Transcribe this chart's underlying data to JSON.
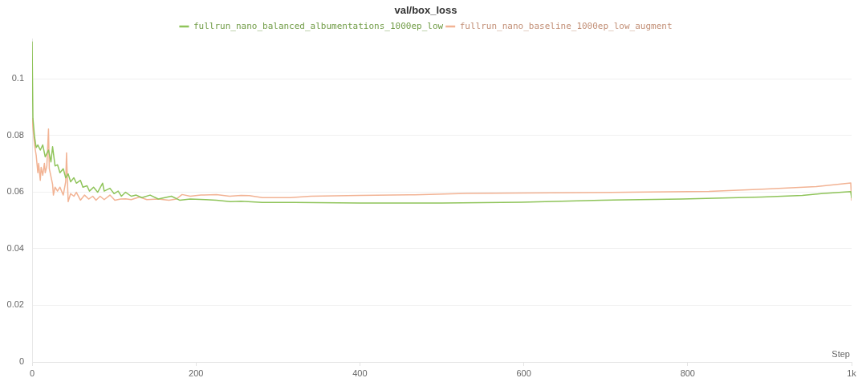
{
  "chart_data": {
    "type": "line",
    "title": "val/box_loss",
    "xlabel": "Step",
    "xlim": [
      0,
      1000
    ],
    "xticks": [
      0,
      200,
      400,
      600,
      800,
      {
        "value": 1000,
        "label": "1k"
      }
    ],
    "ylim": [
      0,
      0.114
    ],
    "yticks": [
      0,
      0.02,
      0.04,
      0.06,
      0.08,
      0.1
    ],
    "grid": "y",
    "legend": "top",
    "marker": "none",
    "line_style": "solid",
    "series": [
      {
        "name": "fullrun_nano_balanced_albumentations_1000ep_low",
        "color": "#8fc45a",
        "x": [
          0,
          1,
          3,
          5,
          7,
          10,
          13,
          16,
          20,
          23,
          25,
          28,
          31,
          34,
          38,
          41,
          44,
          47,
          51,
          54,
          59,
          62,
          67,
          70,
          75,
          80,
          86,
          88,
          95,
          100,
          105,
          109,
          114,
          121,
          127,
          134,
          144,
          154,
          170,
          180,
          193,
          212,
          225,
          242,
          255,
          281,
          320,
          400,
          500,
          597,
          695,
          793,
          891,
          940,
          963,
          999,
          1000
        ],
        "values": [
          0.113,
          0.086,
          0.0794,
          0.0757,
          0.0766,
          0.0748,
          0.0766,
          0.0724,
          0.0748,
          0.0706,
          0.076,
          0.0692,
          0.0696,
          0.0668,
          0.0682,
          0.065,
          0.0664,
          0.0636,
          0.065,
          0.0631,
          0.0641,
          0.0617,
          0.0622,
          0.0603,
          0.0617,
          0.0599,
          0.0631,
          0.0603,
          0.0613,
          0.0594,
          0.0603,
          0.0585,
          0.0599,
          0.0585,
          0.0589,
          0.058,
          0.0589,
          0.0575,
          0.0585,
          0.0571,
          0.0575,
          0.0573,
          0.0571,
          0.0566,
          0.0567,
          0.0563,
          0.0563,
          0.0561,
          0.0561,
          0.0564,
          0.0571,
          0.0575,
          0.0582,
          0.0588,
          0.0594,
          0.0601,
          0.058
        ]
      },
      {
        "name": "fullrun_nano_baseline_1000ep_low_augment",
        "color": "#f2b394",
        "x": [
          0,
          3,
          5,
          7,
          8,
          10,
          11,
          13,
          15,
          16,
          18,
          20,
          21,
          23,
          25,
          26,
          28,
          31,
          34,
          38,
          41,
          42,
          44,
          47,
          51,
          54,
          59,
          64,
          69,
          74,
          78,
          83,
          88,
          95,
          101,
          108,
          114,
          121,
          131,
          140,
          154,
          167,
          176,
          183,
          193,
          206,
          225,
          241,
          255,
          265,
          281,
          315,
          340,
          400,
          467,
          530,
          597,
          728,
          826,
          891,
          957,
          999,
          1000
        ],
        "values": [
          0.0859,
          0.0766,
          0.0729,
          0.0668,
          0.0701,
          0.0641,
          0.0687,
          0.0659,
          0.0701,
          0.0668,
          0.0692,
          0.0822,
          0.0682,
          0.0655,
          0.0627,
          0.0589,
          0.0617,
          0.0603,
          0.0617,
          0.0589,
          0.0636,
          0.0738,
          0.0566,
          0.0594,
          0.0585,
          0.0599,
          0.0571,
          0.0589,
          0.0575,
          0.0585,
          0.0571,
          0.0585,
          0.0573,
          0.0589,
          0.0571,
          0.0575,
          0.0576,
          0.0573,
          0.0582,
          0.0573,
          0.0575,
          0.0571,
          0.0575,
          0.0591,
          0.0585,
          0.0589,
          0.0591,
          0.0585,
          0.0588,
          0.0587,
          0.058,
          0.058,
          0.0585,
          0.0588,
          0.059,
          0.0595,
          0.0596,
          0.0599,
          0.0602,
          0.061,
          0.0619,
          0.0632,
          0.0571
        ]
      }
    ]
  }
}
